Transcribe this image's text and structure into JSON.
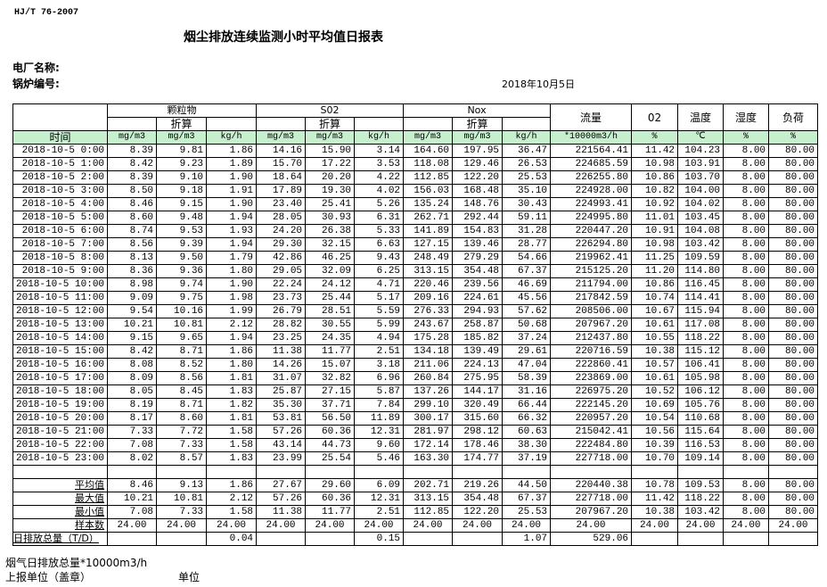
{
  "header": {
    "standard": "HJ/T  76-2007",
    "title": "烟尘排放连续监测小时平均值日报表",
    "plant_label": "电厂名称:",
    "boiler_label": "锅炉编号:",
    "date": "2018年10月5日"
  },
  "table": {
    "groups": [
      "颗粒物",
      "S02",
      "Nox"
    ],
    "converted_label": "折算",
    "single_headers": [
      "流量",
      "02",
      "温度",
      "湿度",
      "负荷"
    ],
    "time_label": "时间",
    "units": [
      "mg/m3",
      "mg/m3",
      "kg/h",
      "mg/m3",
      "mg/m3",
      "kg/h",
      "mg/m3",
      "mg/m3",
      "kg/h",
      "*10000m3/h",
      "%",
      "℃",
      "%",
      "%"
    ],
    "header_color": "#c6efce",
    "rows": [
      [
        "2018-10-5 0:00",
        "8.39",
        "9.81",
        "1.86",
        "14.16",
        "15.90",
        "3.14",
        "164.60",
        "197.95",
        "36.47",
        "221564.41",
        "11.42",
        "104.23",
        "8.00",
        "80.00"
      ],
      [
        "2018-10-5 1:00",
        "8.42",
        "9.23",
        "1.89",
        "15.70",
        "17.22",
        "3.53",
        "118.08",
        "129.46",
        "26.53",
        "224685.59",
        "10.98",
        "103.91",
        "8.00",
        "80.00"
      ],
      [
        "2018-10-5 2:00",
        "8.39",
        "9.10",
        "1.90",
        "18.64",
        "20.20",
        "4.22",
        "112.85",
        "122.20",
        "25.53",
        "226255.80",
        "10.86",
        "103.70",
        "8.00",
        "80.00"
      ],
      [
        "2018-10-5 3:00",
        "8.50",
        "9.18",
        "1.91",
        "17.89",
        "19.30",
        "4.02",
        "156.03",
        "168.48",
        "35.10",
        "224928.00",
        "10.82",
        "104.00",
        "8.00",
        "80.00"
      ],
      [
        "2018-10-5 4:00",
        "8.46",
        "9.15",
        "1.90",
        "23.40",
        "25.41",
        "5.26",
        "135.24",
        "148.76",
        "30.43",
        "224993.41",
        "10.92",
        "104.02",
        "8.00",
        "80.00"
      ],
      [
        "2018-10-5 5:00",
        "8.60",
        "9.48",
        "1.94",
        "28.05",
        "30.93",
        "6.31",
        "262.71",
        "292.44",
        "59.11",
        "224995.80",
        "11.01",
        "103.45",
        "8.00",
        "80.00"
      ],
      [
        "2018-10-5 6:00",
        "8.74",
        "9.53",
        "1.93",
        "24.20",
        "26.38",
        "5.33",
        "141.89",
        "154.83",
        "31.28",
        "220447.20",
        "10.91",
        "104.08",
        "8.00",
        "80.00"
      ],
      [
        "2018-10-5 7:00",
        "8.56",
        "9.39",
        "1.94",
        "29.30",
        "32.15",
        "6.63",
        "127.15",
        "139.46",
        "28.77",
        "226294.80",
        "10.98",
        "103.42",
        "8.00",
        "80.00"
      ],
      [
        "2018-10-5 8:00",
        "8.13",
        "9.50",
        "1.79",
        "42.86",
        "46.25",
        "9.43",
        "248.49",
        "279.29",
        "54.66",
        "219962.41",
        "11.25",
        "109.59",
        "8.00",
        "80.00"
      ],
      [
        "2018-10-5 9:00",
        "8.36",
        "9.36",
        "1.80",
        "29.05",
        "32.09",
        "6.25",
        "313.15",
        "354.48",
        "67.37",
        "215125.20",
        "11.20",
        "114.80",
        "8.00",
        "80.00"
      ],
      [
        "2018-10-5 10:00",
        "8.98",
        "9.74",
        "1.90",
        "22.24",
        "24.12",
        "4.71",
        "220.46",
        "239.56",
        "46.69",
        "211794.00",
        "10.86",
        "116.45",
        "8.00",
        "80.00"
      ],
      [
        "2018-10-5 11:00",
        "9.09",
        "9.75",
        "1.98",
        "23.73",
        "25.44",
        "5.17",
        "209.16",
        "224.61",
        "45.56",
        "217842.59",
        "10.74",
        "114.41",
        "8.00",
        "80.00"
      ],
      [
        "2018-10-5 12:00",
        "9.54",
        "10.16",
        "1.99",
        "26.79",
        "28.51",
        "5.59",
        "276.33",
        "294.93",
        "57.62",
        "208506.00",
        "10.67",
        "115.94",
        "8.00",
        "80.00"
      ],
      [
        "2018-10-5 13:00",
        "10.21",
        "10.81",
        "2.12",
        "28.82",
        "30.55",
        "5.99",
        "243.67",
        "258.87",
        "50.68",
        "207967.20",
        "10.61",
        "117.08",
        "8.00",
        "80.00"
      ],
      [
        "2018-10-5 14:00",
        "9.15",
        "9.65",
        "1.94",
        "23.25",
        "24.35",
        "4.94",
        "175.28",
        "185.82",
        "37.24",
        "212437.80",
        "10.55",
        "118.22",
        "8.00",
        "80.00"
      ],
      [
        "2018-10-5 15:00",
        "8.42",
        "8.71",
        "1.86",
        "11.38",
        "11.77",
        "2.51",
        "134.18",
        "139.49",
        "29.61",
        "220716.59",
        "10.38",
        "115.12",
        "8.00",
        "80.00"
      ],
      [
        "2018-10-5 16:00",
        "8.08",
        "8.52",
        "1.80",
        "14.26",
        "15.07",
        "3.18",
        "211.06",
        "224.13",
        "47.04",
        "222860.41",
        "10.57",
        "106.41",
        "8.00",
        "80.00"
      ],
      [
        "2018-10-5 17:00",
        "8.09",
        "8.56",
        "1.81",
        "31.07",
        "32.82",
        "6.96",
        "260.84",
        "275.95",
        "58.39",
        "223869.00",
        "10.61",
        "105.98",
        "8.00",
        "80.00"
      ],
      [
        "2018-10-5 18:00",
        "8.05",
        "8.45",
        "1.83",
        "25.87",
        "27.15",
        "5.87",
        "137.26",
        "144.17",
        "31.16",
        "226975.20",
        "10.52",
        "106.12",
        "8.00",
        "80.00"
      ],
      [
        "2018-10-5 19:00",
        "8.19",
        "8.71",
        "1.82",
        "35.30",
        "37.71",
        "7.84",
        "299.10",
        "320.49",
        "66.44",
        "222145.20",
        "10.69",
        "105.76",
        "8.00",
        "80.00"
      ],
      [
        "2018-10-5 20:00",
        "8.17",
        "8.60",
        "1.81",
        "53.81",
        "56.50",
        "11.89",
        "300.17",
        "315.60",
        "66.32",
        "220957.20",
        "10.54",
        "110.68",
        "8.00",
        "80.00"
      ],
      [
        "2018-10-5 21:00",
        "7.33",
        "7.72",
        "1.58",
        "57.26",
        "60.36",
        "12.31",
        "281.97",
        "298.12",
        "60.63",
        "215042.41",
        "10.56",
        "115.64",
        "8.00",
        "80.00"
      ],
      [
        "2018-10-5 22:00",
        "7.08",
        "7.33",
        "1.58",
        "43.14",
        "44.73",
        "9.60",
        "172.14",
        "178.46",
        "38.30",
        "222484.80",
        "10.39",
        "116.53",
        "8.00",
        "80.00"
      ],
      [
        "2018-10-5 23:00",
        "8.02",
        "8.57",
        "1.83",
        "23.99",
        "25.54",
        "5.46",
        "163.30",
        "174.77",
        "37.19",
        "227718.00",
        "10.70",
        "109.14",
        "8.00",
        "80.00"
      ]
    ],
    "stats": [
      [
        "平均值",
        "8.46",
        "9.13",
        "1.86",
        "27.67",
        "29.60",
        "6.09",
        "202.71",
        "219.26",
        "44.50",
        "220440.38",
        "10.78",
        "109.53",
        "8.00",
        "80.00"
      ],
      [
        "最大值",
        "10.21",
        "10.81",
        "2.12",
        "57.26",
        "60.36",
        "12.31",
        "313.15",
        "354.48",
        "67.37",
        "227718.00",
        "11.42",
        "118.22",
        "8.00",
        "80.00"
      ],
      [
        "最小值",
        "7.08",
        "7.33",
        "1.58",
        "11.38",
        "11.77",
        "2.51",
        "112.85",
        "122.20",
        "25.53",
        "207967.20",
        "10.38",
        "103.42",
        "8.00",
        "80.00"
      ],
      [
        "样本数",
        "24.00",
        "24.00",
        "24.00",
        "24.00",
        "24.00",
        "24.00",
        "24.00",
        "24.00",
        "24.00",
        "24.00",
        "24.00",
        "24.00",
        "24.00",
        "24.00"
      ]
    ],
    "daily_total": [
      "日排放总量（T/D）",
      "",
      "",
      "0.04",
      "",
      "",
      "0.15",
      "",
      "",
      "1.07",
      "529.06",
      "",
      "",
      "",
      ""
    ]
  },
  "footer": {
    "flue_gas_total": "烟气日排放总量*10000m3/h",
    "reporting_unit": "上报单位（盖章）",
    "unit": "单位"
  }
}
